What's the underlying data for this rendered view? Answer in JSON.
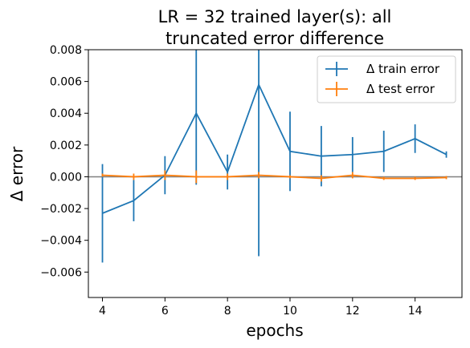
{
  "chart_data": {
    "type": "line",
    "title_line1": "LR = 32 trained layer(s): all",
    "title_line2": "truncated error difference",
    "xlabel": "epochs",
    "ylabel": "Δ error",
    "xlim": [
      3.55,
      15.5
    ],
    "ylim": [
      -0.0076,
      0.008
    ],
    "xticks": [
      4,
      6,
      8,
      10,
      12,
      14
    ],
    "yticks": [
      -0.006,
      -0.004,
      -0.002,
      0.0,
      0.002,
      0.004,
      0.006,
      0.008
    ],
    "ytick_labels": [
      "−0.006",
      "−0.004",
      "−0.002",
      "0.000",
      "0.002",
      "0.004",
      "0.006",
      "0.008"
    ],
    "hline": 0,
    "grid": false,
    "legend_position": "top-right",
    "x": [
      4,
      5,
      6,
      7,
      8,
      9,
      10,
      11,
      12,
      13,
      14,
      15
    ],
    "series": [
      {
        "name": "Δ train error",
        "color": "#1f77b4",
        "values": [
          -0.0023,
          -0.0015,
          0.0001,
          0.004,
          0.0003,
          0.0058,
          0.0016,
          0.0013,
          0.0014,
          0.0016,
          0.0024,
          0.0014
        ],
        "errors": [
          0.0031,
          0.0013,
          0.0012,
          0.0045,
          0.0011,
          0.0108,
          0.0025,
          0.0019,
          0.0011,
          0.0013,
          0.0009,
          0.0002
        ]
      },
      {
        "name": "Δ test error",
        "color": "#ff7f0e",
        "values": [
          0.0001,
          0.0,
          0.0001,
          0.0,
          0.0,
          0.0001,
          0.0,
          -0.0001,
          0.0001,
          -0.0001,
          -0.0001,
          -5e-05
        ],
        "errors": [
          0.0001,
          0.0002,
          0.0003,
          0.0004,
          0.0002,
          0.0002,
          0.0001,
          0.0002,
          0.0002,
          0.0001,
          0.0001,
          0.0001
        ]
      }
    ]
  }
}
